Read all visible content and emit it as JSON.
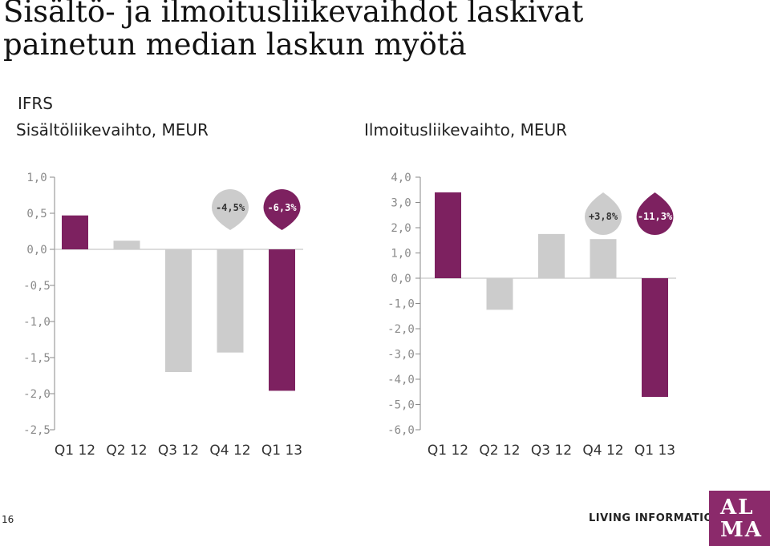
{
  "title": "Sisältö- ja ilmoitusliikevaihdot laskivat painetun median laskun myötä",
  "ifrs_label": "IFRS",
  "footer": {
    "page_number": "16",
    "tagline": "LIVING INFORMATION",
    "logo_text": "ALMA"
  },
  "colors": {
    "accent": "#7d2160",
    "gray": "#cccccc",
    "axis": "#8a8a8a",
    "grid": "#bbbbbb"
  },
  "chart_data": [
    {
      "type": "bar",
      "title": "Sisältöliikevaihto, MEUR",
      "categories": [
        "Q1 12",
        "Q2 12",
        "Q3 12",
        "Q4 12",
        "Q1 13"
      ],
      "values": [
        0.47,
        0.12,
        -1.7,
        -1.43,
        -1.96
      ],
      "highlighted": [
        true,
        false,
        false,
        false,
        true
      ],
      "ylim": [
        -2.5,
        1.0
      ],
      "y_ticks": [
        "1,0",
        "0,5",
        "0,0",
        "-0,5",
        "-1,0",
        "-1,5",
        "-2,0",
        "-2,5"
      ],
      "grid": false,
      "annotations": [
        {
          "label": "-4,5%",
          "category_index": 3,
          "style": "gray"
        },
        {
          "label": "-6,3%",
          "category_index": 4,
          "style": "accent"
        }
      ]
    },
    {
      "type": "bar",
      "title": "Ilmoitusliikevaihto, MEUR",
      "categories": [
        "Q1 12",
        "Q2 12",
        "Q3 12",
        "Q4 12",
        "Q1 13"
      ],
      "values": [
        3.4,
        -1.25,
        1.75,
        1.55,
        -4.7
      ],
      "highlighted": [
        true,
        false,
        false,
        false,
        true
      ],
      "ylim": [
        -6.0,
        4.0
      ],
      "y_ticks": [
        "4,0",
        "3,0",
        "2,0",
        "1,0",
        "0,0",
        "-1,0",
        "-2,0",
        "-3,0",
        "-4,0",
        "-5,0",
        "-6,0"
      ],
      "grid": false,
      "annotations": [
        {
          "label": "+3,8%",
          "category_index": 3,
          "style": "gray"
        },
        {
          "label": "-11,3%",
          "category_index": 4,
          "style": "accent"
        }
      ]
    }
  ]
}
